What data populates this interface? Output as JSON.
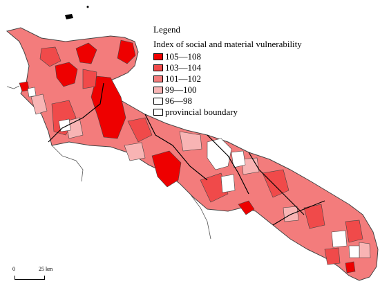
{
  "legend": {
    "title": "Legend",
    "subtitle": "Index of social and material vulnerability",
    "items": [
      {
        "label": "105—108",
        "color": "#ee0000"
      },
      {
        "label": "103—104",
        "color": "#f04a4a"
      },
      {
        "label": "101—102",
        "color": "#f37c7c"
      },
      {
        "label": "99—100",
        "color": "#f8b4b4"
      },
      {
        "label": "96—98",
        "color": "#ffffff"
      },
      {
        "label": "provincial boundary",
        "color": "#ffffff"
      }
    ]
  },
  "scale_bar": {
    "zero": "0",
    "distance": "25 km"
  }
}
